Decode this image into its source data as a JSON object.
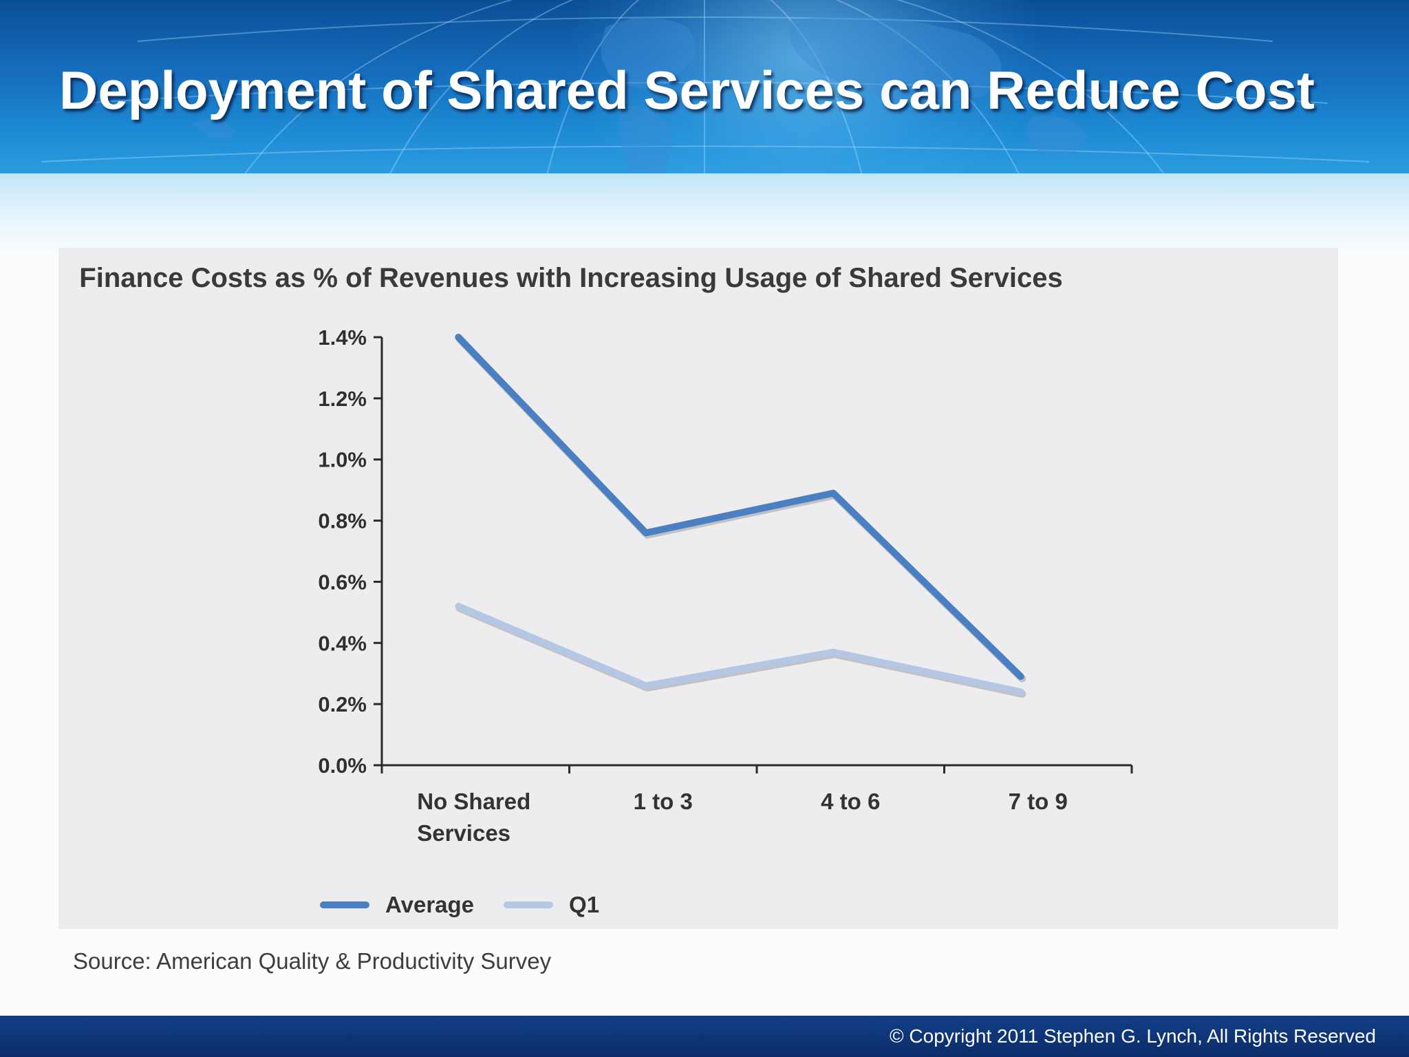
{
  "slide": {
    "title": "Deployment of Shared Services can Reduce Cost",
    "source": "Source: American Quality & Productivity Survey",
    "copyright": "© Copyright 2011 Stephen G. Lynch, All Rights Reserved",
    "background_image": "globe-map-banner"
  },
  "colors": {
    "header_blue": "#1670bf",
    "footer_navy": "#0b2c69",
    "average_line": "#4a7fc2",
    "q1_line": "#b4c8e6",
    "chart_background": "#ededf0"
  },
  "chart_data": {
    "type": "line",
    "title": "Finance Costs as % of Revenues with Increasing Usage of Shared Services",
    "categories": [
      [
        "No Shared",
        "Services"
      ],
      [
        "1 to 3"
      ],
      [
        "4 to 6"
      ],
      [
        "7 to 9"
      ]
    ],
    "series": [
      {
        "name": "Average",
        "values": [
          1.4,
          0.76,
          0.89,
          0.29
        ],
        "color": "#4a7fc2"
      },
      {
        "name": "Q1",
        "values": [
          0.52,
          0.26,
          0.37,
          0.24
        ],
        "color": "#b4c8e6"
      }
    ],
    "y_ticks": [
      "1.4%",
      "1.2%",
      "1.0%",
      "0.8%",
      "0.6%",
      "0.4%",
      "0.2%",
      "0.0%"
    ],
    "ylim": [
      0,
      1.4
    ],
    "grid": false,
    "legend_position": "bottom-left"
  }
}
